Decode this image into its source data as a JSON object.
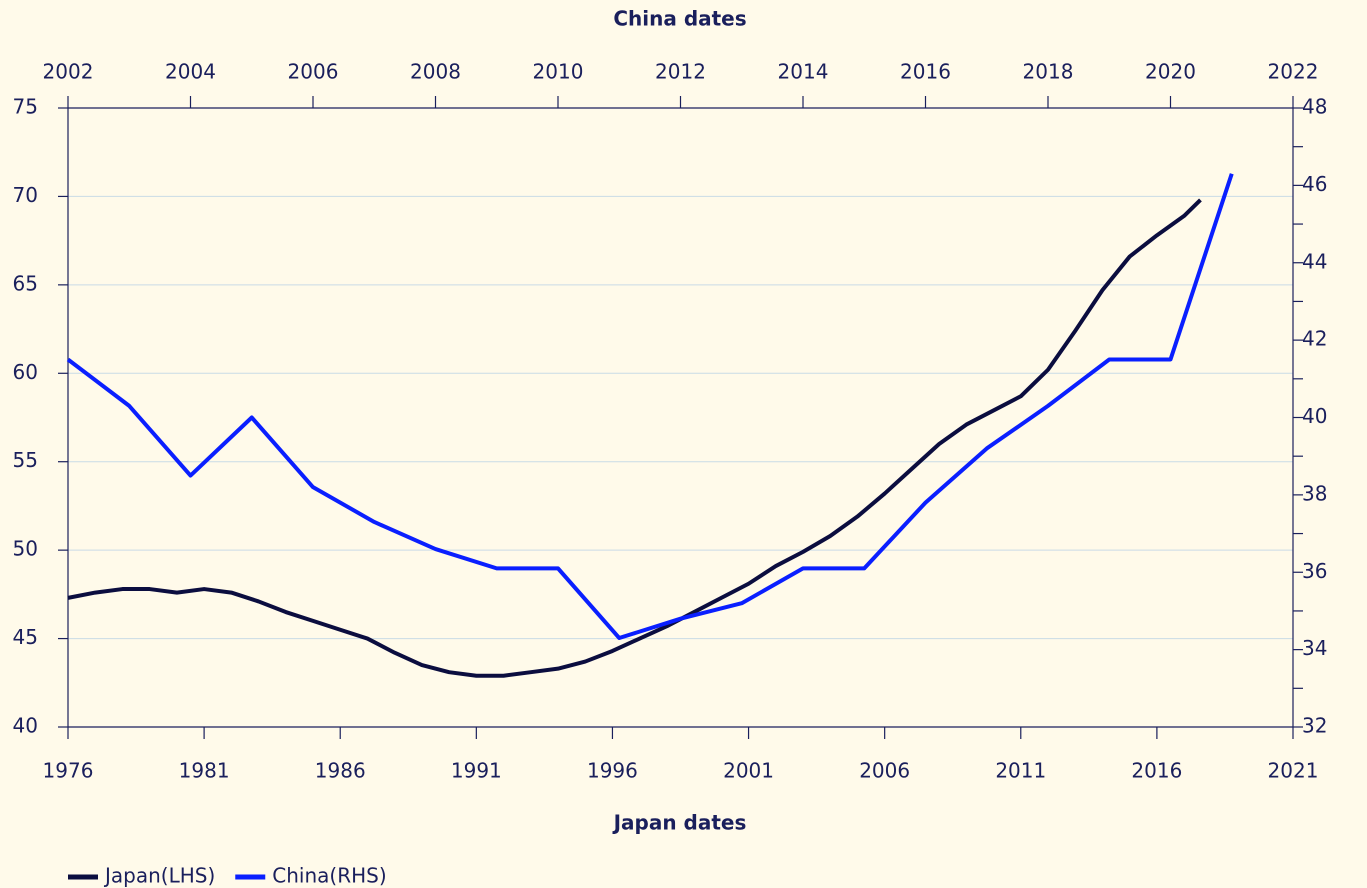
{
  "chart_data": {
    "type": "line",
    "xlabel": "Japan dates",
    "x2label": "China dates",
    "xlim": [
      1976,
      2021
    ],
    "xticks": [
      1976,
      1981,
      1986,
      1991,
      1996,
      2001,
      2006,
      2011,
      2016,
      2021
    ],
    "x2lim": [
      2002,
      2022
    ],
    "x2ticks": [
      2002,
      2004,
      2006,
      2008,
      2010,
      2012,
      2014,
      2016,
      2018,
      2020,
      2022
    ],
    "ylim": [
      40,
      75
    ],
    "yticks": [
      40,
      45,
      50,
      55,
      60,
      65,
      70,
      75
    ],
    "y2lim": [
      32,
      48
    ],
    "y2ticks": [
      32,
      34,
      36,
      38,
      40,
      42,
      44,
      46,
      48
    ],
    "y2minorticks": [
      33,
      35,
      37,
      39,
      41,
      43,
      45,
      47
    ],
    "grid": true,
    "legend": "bottom-left",
    "series": [
      {
        "name": "Japan(LHS)",
        "color": "#0b0d3f",
        "x": [
          1976,
          1977,
          1978,
          1979,
          1980,
          1981,
          1982,
          1983,
          1984,
          1985,
          1986,
          1987,
          1988,
          1989,
          1990,
          1991,
          1992,
          1993,
          1994,
          1995,
          1996,
          1997,
          1998,
          1999,
          2000,
          2001,
          2002,
          2003,
          2004,
          2005,
          2006,
          2007,
          2008,
          2009,
          2010,
          2011,
          2012,
          2013,
          2014,
          2015,
          2016,
          2017,
          2017.6
        ],
        "values": [
          47.3,
          47.6,
          47.8,
          47.8,
          47.6,
          47.8,
          47.6,
          47.1,
          46.5,
          46.0,
          45.5,
          45.0,
          44.2,
          43.5,
          43.1,
          42.9,
          42.9,
          43.1,
          43.3,
          43.7,
          44.3,
          45.0,
          45.7,
          46.5,
          47.3,
          48.1,
          49.1,
          49.9,
          50.8,
          51.9,
          53.2,
          54.6,
          56.0,
          57.1,
          57.9,
          58.7,
          60.2,
          62.4,
          64.7,
          66.6,
          67.8,
          68.9,
          69.8
        ]
      },
      {
        "name": "China(RHS)",
        "color": "#0a1fff",
        "axis": "y2",
        "xaxis": "x2",
        "x": [
          2002,
          2003,
          2004,
          2005,
          2006,
          2007,
          2008,
          2009,
          2010,
          2011,
          2012,
          2013,
          2014,
          2015,
          2016,
          2017,
          2018,
          2019,
          2020,
          2021
        ],
        "values": [
          41.5,
          40.3,
          38.5,
          40.0,
          38.2,
          37.3,
          36.6,
          36.1,
          36.1,
          34.3,
          34.8,
          35.2,
          36.1,
          36.1,
          37.8,
          39.2,
          40.3,
          41.5,
          41.5,
          46.3
        ]
      }
    ]
  }
}
